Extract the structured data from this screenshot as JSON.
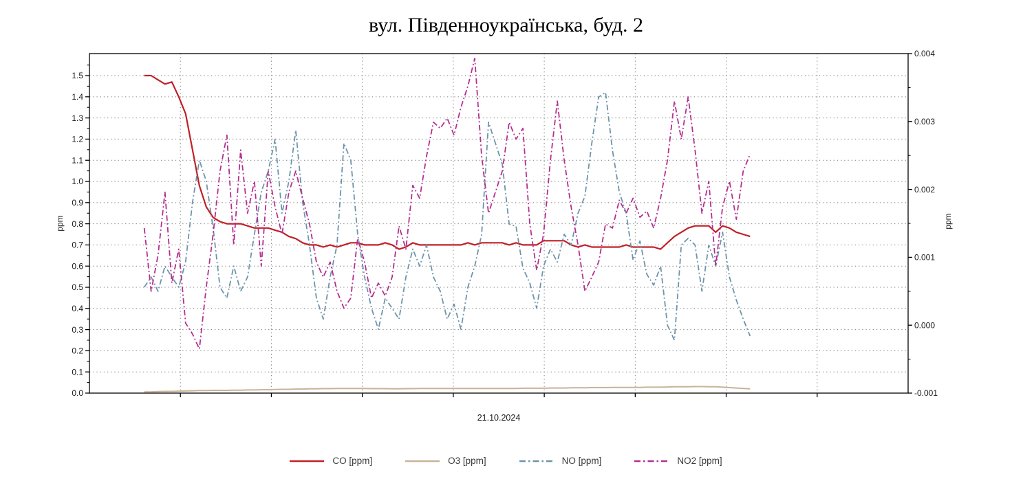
{
  "title": "вул. Південноукраїнська, буд. 2",
  "x_axis": {
    "date_label": "21.10.2024"
  },
  "left_axis": {
    "label": "ppm",
    "tick_labels": [
      "0.0",
      "0.1",
      "0.2",
      "0.3",
      "0.4",
      "0.5",
      "0.6",
      "0.7",
      "0.8",
      "0.9",
      "1.0",
      "1.1",
      "1.2",
      "1.3",
      "1.4",
      "1.5"
    ],
    "minor_tick_step": 0.05
  },
  "right_axis": {
    "label": "ppm",
    "tick_labels": [
      "-0.001",
      "0.000",
      "0.001",
      "0.002",
      "0.003",
      "0.004"
    ],
    "minor_tick_step": 0.0005
  },
  "colors": {
    "co": "#c02026",
    "o3": "#c8b397",
    "no": "#6d95ab",
    "no2": "#b52f90",
    "grid": "#7a7a7a",
    "axis": "#000000",
    "tick_text": "#1a1a1a"
  },
  "chart_data": {
    "type": "line",
    "title": "вул. Південноукраїнська, буд. 2",
    "x_label": "21.10.2024",
    "left_ylabel": "ppm",
    "right_ylabel": "ppm",
    "left_ylim": [
      0,
      1.604
    ],
    "right_ylim": [
      -0.001,
      0.004
    ],
    "grid": "dotted",
    "vertical_divisions": 9,
    "legend_position": "bottom-center",
    "x_fraction_range": [
      0.067,
      0.807
    ],
    "n_points": 89,
    "series": [
      {
        "name": "CO [ppm]",
        "axis": "left",
        "color": "#c02026",
        "line_style": "solid",
        "width": 2.2,
        "values": [
          1.5,
          1.5,
          1.48,
          1.46,
          1.47,
          1.4,
          1.32,
          1.15,
          0.98,
          0.88,
          0.83,
          0.81,
          0.8,
          0.8,
          0.8,
          0.79,
          0.78,
          0.78,
          0.78,
          0.77,
          0.76,
          0.74,
          0.73,
          0.71,
          0.7,
          0.7,
          0.69,
          0.7,
          0.69,
          0.7,
          0.71,
          0.71,
          0.7,
          0.7,
          0.7,
          0.71,
          0.7,
          0.68,
          0.69,
          0.71,
          0.7,
          0.7,
          0.7,
          0.7,
          0.7,
          0.7,
          0.7,
          0.71,
          0.7,
          0.71,
          0.71,
          0.71,
          0.71,
          0.7,
          0.71,
          0.7,
          0.7,
          0.7,
          0.72,
          0.72,
          0.72,
          0.72,
          0.7,
          0.69,
          0.7,
          0.69,
          0.69,
          0.69,
          0.69,
          0.69,
          0.7,
          0.69,
          0.69,
          0.69,
          0.69,
          0.68,
          0.71,
          0.74,
          0.76,
          0.78,
          0.79,
          0.79,
          0.79,
          0.76,
          0.79,
          0.78,
          0.76,
          0.75,
          0.74
        ]
      },
      {
        "name": "O3 [ppm]",
        "axis": "left",
        "color": "#c8b397",
        "line_style": "solid",
        "width": 2,
        "values": [
          0.006,
          0.006,
          0.007,
          0.008,
          0.008,
          0.009,
          0.01,
          0.011,
          0.012,
          0.012,
          0.013,
          0.013,
          0.013,
          0.014,
          0.014,
          0.015,
          0.015,
          0.016,
          0.016,
          0.017,
          0.018,
          0.018,
          0.019,
          0.019,
          0.02,
          0.02,
          0.021,
          0.021,
          0.022,
          0.022,
          0.022,
          0.022,
          0.022,
          0.021,
          0.021,
          0.021,
          0.02,
          0.02,
          0.021,
          0.021,
          0.022,
          0.022,
          0.022,
          0.022,
          0.022,
          0.022,
          0.022,
          0.022,
          0.022,
          0.022,
          0.022,
          0.022,
          0.022,
          0.022,
          0.022,
          0.023,
          0.023,
          0.023,
          0.023,
          0.024,
          0.024,
          0.024,
          0.025,
          0.025,
          0.025,
          0.026,
          0.026,
          0.026,
          0.027,
          0.027,
          0.027,
          0.027,
          0.027,
          0.028,
          0.028,
          0.028,
          0.029,
          0.03,
          0.03,
          0.03,
          0.031,
          0.031,
          0.03,
          0.03,
          0.028,
          0.026,
          0.024,
          0.022,
          0.02
        ]
      },
      {
        "name": "NO [ppm]",
        "axis": "right",
        "color": "#6d95ab",
        "line_style": "dashdot",
        "width": 1.8,
        "values": [
          0.00056,
          0.00071,
          0.0005,
          0.00087,
          0.00071,
          0.00056,
          0.00093,
          0.00181,
          0.00243,
          0.00212,
          0.00143,
          0.00056,
          0.0004,
          0.00087,
          0.0005,
          0.00071,
          0.00134,
          0.00196,
          0.00227,
          0.00274,
          0.00165,
          0.00212,
          0.00287,
          0.00181,
          0.00118,
          0.0004,
          9e-05,
          0.00071,
          0.00118,
          0.00268,
          0.00243,
          0.00134,
          0.00071,
          0.00025,
          -6e-05,
          0.0004,
          0.00025,
          9e-05,
          0.00071,
          0.00112,
          0.00087,
          0.00118,
          0.00071,
          0.0005,
          9e-05,
          0.00031,
          -6e-05,
          0.00056,
          0.00087,
          0.00134,
          0.00299,
          0.00268,
          0.00237,
          0.00149,
          0.00146,
          0.00084,
          0.00062,
          0.00025,
          0.00087,
          0.00112,
          0.00093,
          0.00134,
          0.00118,
          0.00165,
          0.0019,
          0.00268,
          0.00336,
          0.00343,
          0.00258,
          0.00196,
          0.00165,
          0.00096,
          0.00124,
          0.00075,
          0.00059,
          0.00087,
          0.0,
          -0.00022,
          0.00118,
          0.00128,
          0.00118,
          0.0005,
          0.00118,
          0.00087,
          0.00137,
          0.00071,
          0.00037,
          9e-05,
          -0.00016
        ]
      },
      {
        "name": "NO2 [ppm]",
        "axis": "right",
        "color": "#b52f90",
        "line_style": "dashdot",
        "width": 1.8,
        "values": [
          0.00143,
          0.0005,
          0.00103,
          0.00196,
          0.00062,
          0.00112,
          3e-05,
          -0.00013,
          -0.00035,
          0.00056,
          0.00134,
          0.00227,
          0.0028,
          0.00118,
          0.00258,
          0.00165,
          0.00212,
          0.00087,
          0.00227,
          0.00174,
          0.00134,
          0.00196,
          0.00227,
          0.00187,
          0.00149,
          0.00093,
          0.00071,
          0.00093,
          0.0005,
          0.00025,
          0.0004,
          0.00128,
          0.00093,
          0.0004,
          0.00062,
          0.00043,
          0.00071,
          0.00146,
          0.00112,
          0.00206,
          0.00187,
          0.00249,
          0.00299,
          0.0029,
          0.00305,
          0.0028,
          0.00321,
          0.00352,
          0.00393,
          0.00249,
          0.00165,
          0.00196,
          0.00227,
          0.00299,
          0.00274,
          0.0029,
          0.00149,
          0.00081,
          0.00134,
          0.00243,
          0.0033,
          0.00243,
          0.00174,
          0.00118,
          0.0005,
          0.00071,
          0.00093,
          0.00149,
          0.00143,
          0.00184,
          0.00165,
          0.00187,
          0.00159,
          0.00168,
          0.00143,
          0.00187,
          0.00243,
          0.0033,
          0.00274,
          0.00336,
          0.00258,
          0.00165,
          0.00212,
          0.00087,
          0.00174,
          0.00212,
          0.00156,
          0.00227,
          0.00252
        ]
      }
    ]
  }
}
